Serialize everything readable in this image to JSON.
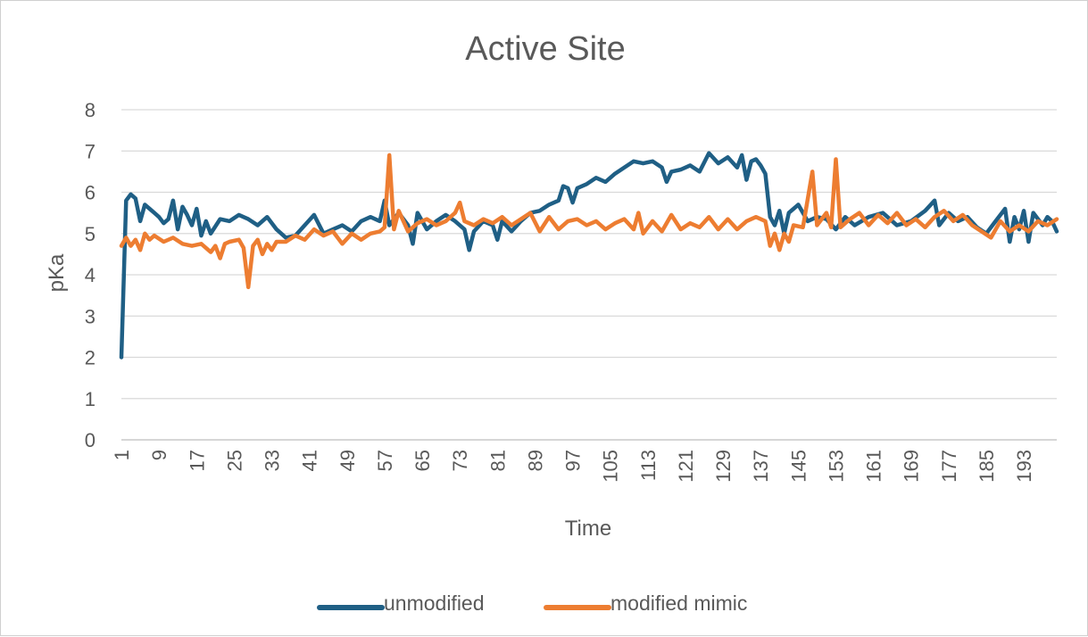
{
  "chart_data": {
    "type": "line",
    "title": "Active Site",
    "xlabel": "Time",
    "ylabel": "pKa",
    "ylim": [
      0,
      8
    ],
    "yticks": [
      "0",
      "1",
      "2",
      "3",
      "4",
      "5",
      "6",
      "7",
      "8"
    ],
    "x_range": [
      1,
      200
    ],
    "xtick_labels": [
      "1",
      "9",
      "17",
      "25",
      "33",
      "41",
      "49",
      "57",
      "65",
      "73",
      "81",
      "89",
      "97",
      "105",
      "113",
      "121",
      "129",
      "137",
      "145",
      "153",
      "161",
      "169",
      "177",
      "185",
      "193"
    ],
    "grid": true,
    "legend_position": "bottom",
    "series": [
      {
        "name": "unmodified",
        "color": "#1f5f85",
        "points": [
          [
            1,
            2.0
          ],
          [
            2,
            5.8
          ],
          [
            3,
            5.95
          ],
          [
            4,
            5.85
          ],
          [
            5,
            5.3
          ],
          [
            6,
            5.7
          ],
          [
            7,
            5.6
          ],
          [
            8,
            5.5
          ],
          [
            9,
            5.4
          ],
          [
            10,
            5.25
          ],
          [
            11,
            5.35
          ],
          [
            12,
            5.8
          ],
          [
            13,
            5.1
          ],
          [
            14,
            5.65
          ],
          [
            15,
            5.45
          ],
          [
            16,
            5.2
          ],
          [
            17,
            5.6
          ],
          [
            18,
            4.95
          ],
          [
            19,
            5.3
          ],
          [
            20,
            5.0
          ],
          [
            22,
            5.35
          ],
          [
            24,
            5.3
          ],
          [
            26,
            5.45
          ],
          [
            28,
            5.35
          ],
          [
            30,
            5.2
          ],
          [
            32,
            5.4
          ],
          [
            34,
            5.1
          ],
          [
            36,
            4.9
          ],
          [
            38,
            4.95
          ],
          [
            40,
            5.2
          ],
          [
            42,
            5.45
          ],
          [
            44,
            5.0
          ],
          [
            46,
            5.1
          ],
          [
            48,
            5.2
          ],
          [
            50,
            5.05
          ],
          [
            52,
            5.3
          ],
          [
            54,
            5.4
          ],
          [
            56,
            5.3
          ],
          [
            57,
            5.8
          ],
          [
            58,
            5.2
          ],
          [
            60,
            5.5
          ],
          [
            62,
            5.2
          ],
          [
            63,
            4.75
          ],
          [
            64,
            5.5
          ],
          [
            66,
            5.1
          ],
          [
            68,
            5.3
          ],
          [
            70,
            5.45
          ],
          [
            72,
            5.3
          ],
          [
            74,
            5.1
          ],
          [
            75,
            4.6
          ],
          [
            76,
            5.05
          ],
          [
            78,
            5.3
          ],
          [
            80,
            5.2
          ],
          [
            81,
            4.85
          ],
          [
            82,
            5.3
          ],
          [
            84,
            5.05
          ],
          [
            86,
            5.3
          ],
          [
            88,
            5.5
          ],
          [
            90,
            5.55
          ],
          [
            92,
            5.7
          ],
          [
            94,
            5.8
          ],
          [
            95,
            6.15
          ],
          [
            96,
            6.1
          ],
          [
            97,
            5.75
          ],
          [
            98,
            6.1
          ],
          [
            100,
            6.2
          ],
          [
            102,
            6.35
          ],
          [
            104,
            6.25
          ],
          [
            106,
            6.45
          ],
          [
            108,
            6.6
          ],
          [
            110,
            6.75
          ],
          [
            112,
            6.7
          ],
          [
            114,
            6.75
          ],
          [
            116,
            6.6
          ],
          [
            117,
            6.25
          ],
          [
            118,
            6.5
          ],
          [
            120,
            6.55
          ],
          [
            122,
            6.65
          ],
          [
            124,
            6.5
          ],
          [
            126,
            6.95
          ],
          [
            128,
            6.7
          ],
          [
            130,
            6.85
          ],
          [
            132,
            6.6
          ],
          [
            133,
            6.9
          ],
          [
            134,
            6.3
          ],
          [
            135,
            6.75
          ],
          [
            136,
            6.8
          ],
          [
            137,
            6.65
          ],
          [
            138,
            6.45
          ],
          [
            139,
            5.4
          ],
          [
            140,
            5.2
          ],
          [
            141,
            5.55
          ],
          [
            142,
            5.0
          ],
          [
            143,
            5.5
          ],
          [
            145,
            5.7
          ],
          [
            147,
            5.3
          ],
          [
            149,
            5.4
          ],
          [
            151,
            5.35
          ],
          [
            153,
            5.1
          ],
          [
            155,
            5.4
          ],
          [
            157,
            5.2
          ],
          [
            160,
            5.4
          ],
          [
            163,
            5.5
          ],
          [
            166,
            5.2
          ],
          [
            169,
            5.3
          ],
          [
            172,
            5.55
          ],
          [
            174,
            5.8
          ],
          [
            175,
            5.2
          ],
          [
            177,
            5.5
          ],
          [
            179,
            5.3
          ],
          [
            181,
            5.4
          ],
          [
            183,
            5.15
          ],
          [
            185,
            5.0
          ],
          [
            187,
            5.3
          ],
          [
            189,
            5.6
          ],
          [
            190,
            4.8
          ],
          [
            191,
            5.4
          ],
          [
            192,
            5.1
          ],
          [
            193,
            5.55
          ],
          [
            194,
            4.8
          ],
          [
            195,
            5.5
          ],
          [
            197,
            5.2
          ],
          [
            198,
            5.4
          ],
          [
            199,
            5.3
          ],
          [
            200,
            5.05
          ]
        ]
      },
      {
        "name": "modified mimic",
        "color": "#ed7d31",
        "points": [
          [
            1,
            4.7
          ],
          [
            2,
            4.9
          ],
          [
            3,
            4.7
          ],
          [
            4,
            4.85
          ],
          [
            5,
            4.6
          ],
          [
            6,
            5.0
          ],
          [
            7,
            4.85
          ],
          [
            8,
            4.95
          ],
          [
            10,
            4.8
          ],
          [
            12,
            4.9
          ],
          [
            14,
            4.75
          ],
          [
            16,
            4.7
          ],
          [
            18,
            4.75
          ],
          [
            20,
            4.55
          ],
          [
            21,
            4.7
          ],
          [
            22,
            4.4
          ],
          [
            23,
            4.75
          ],
          [
            24,
            4.8
          ],
          [
            26,
            4.85
          ],
          [
            27,
            4.65
          ],
          [
            28,
            3.7
          ],
          [
            29,
            4.7
          ],
          [
            30,
            4.85
          ],
          [
            31,
            4.5
          ],
          [
            32,
            4.75
          ],
          [
            33,
            4.6
          ],
          [
            34,
            4.8
          ],
          [
            36,
            4.8
          ],
          [
            38,
            4.95
          ],
          [
            40,
            4.85
          ],
          [
            42,
            5.1
          ],
          [
            44,
            4.95
          ],
          [
            46,
            5.05
          ],
          [
            48,
            4.75
          ],
          [
            50,
            5.0
          ],
          [
            52,
            4.85
          ],
          [
            54,
            5.0
          ],
          [
            56,
            5.05
          ],
          [
            57,
            5.15
          ],
          [
            58,
            6.9
          ],
          [
            59,
            5.1
          ],
          [
            60,
            5.55
          ],
          [
            62,
            5.05
          ],
          [
            64,
            5.25
          ],
          [
            66,
            5.35
          ],
          [
            68,
            5.2
          ],
          [
            70,
            5.3
          ],
          [
            72,
            5.5
          ],
          [
            73,
            5.75
          ],
          [
            74,
            5.3
          ],
          [
            76,
            5.2
          ],
          [
            78,
            5.35
          ],
          [
            80,
            5.25
          ],
          [
            82,
            5.4
          ],
          [
            84,
            5.2
          ],
          [
            86,
            5.35
          ],
          [
            88,
            5.5
          ],
          [
            90,
            5.05
          ],
          [
            92,
            5.4
          ],
          [
            94,
            5.1
          ],
          [
            96,
            5.3
          ],
          [
            98,
            5.35
          ],
          [
            100,
            5.2
          ],
          [
            102,
            5.3
          ],
          [
            104,
            5.1
          ],
          [
            106,
            5.25
          ],
          [
            108,
            5.35
          ],
          [
            110,
            5.1
          ],
          [
            111,
            5.5
          ],
          [
            112,
            5.0
          ],
          [
            114,
            5.3
          ],
          [
            116,
            5.05
          ],
          [
            118,
            5.45
          ],
          [
            120,
            5.1
          ],
          [
            122,
            5.25
          ],
          [
            124,
            5.15
          ],
          [
            126,
            5.4
          ],
          [
            128,
            5.1
          ],
          [
            130,
            5.35
          ],
          [
            132,
            5.1
          ],
          [
            134,
            5.3
          ],
          [
            136,
            5.4
          ],
          [
            138,
            5.3
          ],
          [
            139,
            4.7
          ],
          [
            140,
            5.0
          ],
          [
            141,
            4.6
          ],
          [
            142,
            5.0
          ],
          [
            143,
            4.8
          ],
          [
            144,
            5.2
          ],
          [
            146,
            5.15
          ],
          [
            148,
            6.5
          ],
          [
            149,
            5.2
          ],
          [
            151,
            5.5
          ],
          [
            152,
            5.15
          ],
          [
            153,
            6.8
          ],
          [
            154,
            5.15
          ],
          [
            156,
            5.35
          ],
          [
            158,
            5.5
          ],
          [
            160,
            5.2
          ],
          [
            162,
            5.45
          ],
          [
            164,
            5.25
          ],
          [
            166,
            5.5
          ],
          [
            168,
            5.2
          ],
          [
            170,
            5.35
          ],
          [
            172,
            5.15
          ],
          [
            174,
            5.4
          ],
          [
            176,
            5.55
          ],
          [
            178,
            5.3
          ],
          [
            180,
            5.45
          ],
          [
            182,
            5.2
          ],
          [
            184,
            5.05
          ],
          [
            186,
            4.9
          ],
          [
            188,
            5.3
          ],
          [
            190,
            5.05
          ],
          [
            192,
            5.2
          ],
          [
            194,
            5.05
          ],
          [
            196,
            5.3
          ],
          [
            198,
            5.2
          ],
          [
            200,
            5.35
          ]
        ]
      }
    ]
  }
}
